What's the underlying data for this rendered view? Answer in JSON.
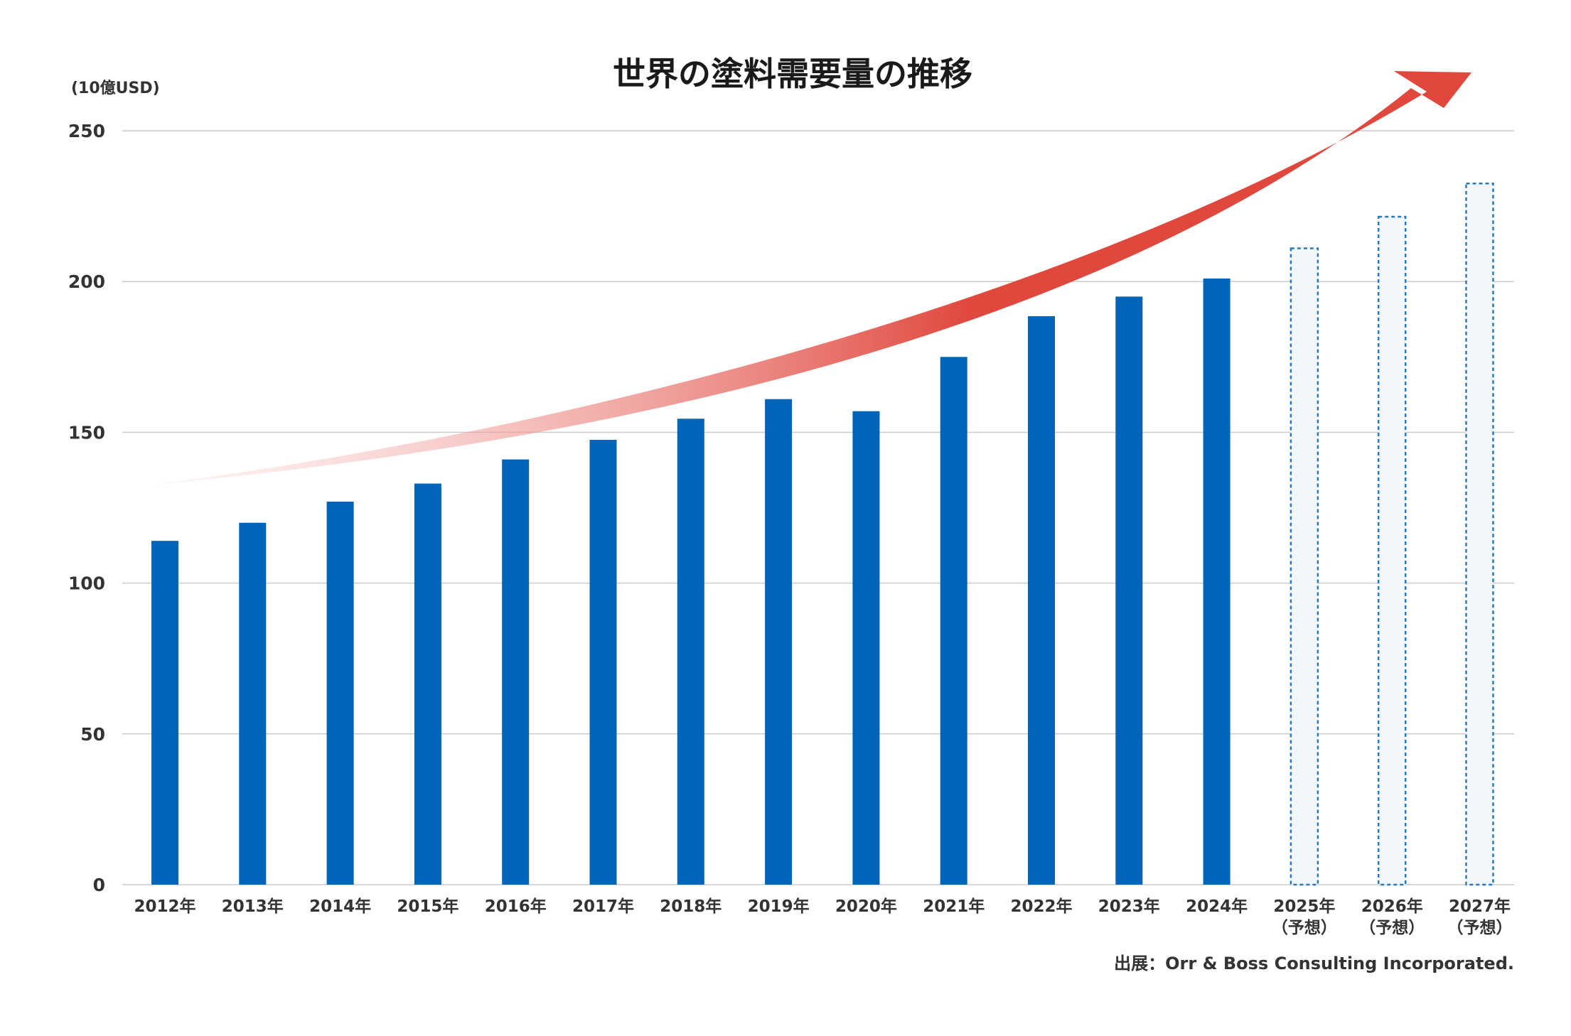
{
  "chart_data": {
    "type": "bar",
    "title": "世界の塗料需要量の推移",
    "unit_label": "(10億USD)",
    "ylim": [
      0,
      250
    ],
    "y_ticks": [
      "0",
      "50",
      "100",
      "150",
      "200",
      "250"
    ],
    "grid": true,
    "categories": [
      [
        "2012年"
      ],
      [
        "2013年"
      ],
      [
        "2014年"
      ],
      [
        "2015年"
      ],
      [
        "2016年"
      ],
      [
        "2017年"
      ],
      [
        "2018年"
      ],
      [
        "2019年"
      ],
      [
        "2020年"
      ],
      [
        "2021年"
      ],
      [
        "2022年"
      ],
      [
        "2023年"
      ],
      [
        "2024年"
      ],
      [
        "2025年",
        "（予想）"
      ],
      [
        "2026年",
        "（予想）"
      ],
      [
        "2027年",
        "（予想）"
      ]
    ],
    "values": [
      114,
      120,
      127,
      133,
      141,
      147.5,
      154.5,
      161,
      157,
      175,
      188.5,
      195,
      201,
      211,
      221.5,
      232.5
    ],
    "forecast": [
      false,
      false,
      false,
      false,
      false,
      false,
      false,
      false,
      false,
      false,
      false,
      false,
      false,
      true,
      true,
      true
    ],
    "colors": {
      "bar": "#0064b8",
      "forecast_stroke": "#2a7ab8",
      "forecast_fill": "#f2f7fb",
      "arrow_start": "#fbe0e0",
      "arrow_end": "#e0483e",
      "grid": "#cccccc"
    },
    "source": "出展：Orr & Boss Consulting Incorporated."
  }
}
